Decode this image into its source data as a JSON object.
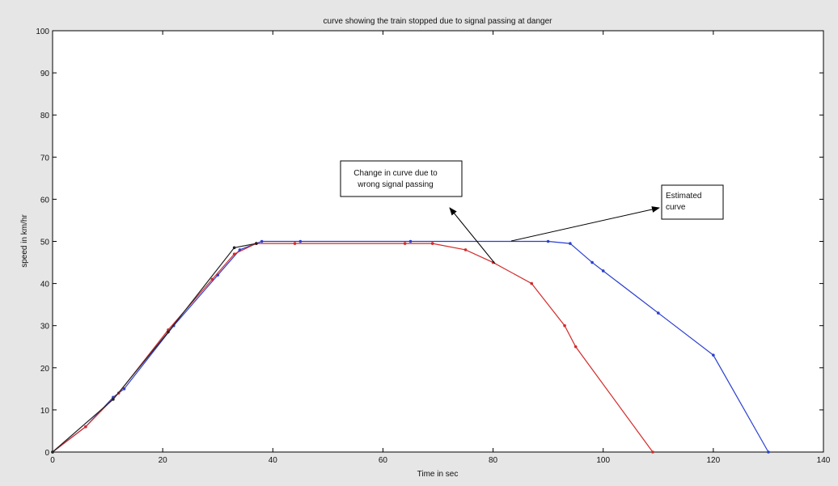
{
  "chart_data": {
    "type": "line",
    "title": "curve showing the train stopped due to signal passing at danger",
    "xlabel": "Time in sec",
    "ylabel": "speed in km/hr",
    "xlim": [
      0,
      140
    ],
    "ylim": [
      0,
      100
    ],
    "xticks": [
      0,
      20,
      40,
      60,
      80,
      100,
      120,
      140
    ],
    "yticks": [
      0,
      10,
      20,
      30,
      40,
      50,
      60,
      70,
      80,
      90,
      100
    ],
    "grid": false,
    "series": [
      {
        "color": "#2a3fd0",
        "x": [
          0,
          6,
          11,
          13,
          22,
          30,
          34,
          38,
          45,
          65,
          90,
          94,
          98,
          100,
          110,
          120,
          130
        ],
        "y": [
          0,
          6,
          13,
          15,
          30,
          42,
          48,
          50,
          50,
          50,
          50,
          49.5,
          45,
          43,
          33,
          23,
          0
        ]
      },
      {
        "color": "#d42a2a",
        "x": [
          0,
          6,
          12,
          21,
          29,
          33,
          37,
          44,
          64,
          69,
          75,
          80,
          87,
          93,
          95,
          109
        ],
        "y": [
          0,
          6,
          14,
          29,
          41,
          47,
          49.5,
          49.5,
          49.5,
          49.5,
          48,
          45,
          40,
          30,
          25,
          0
        ]
      },
      {
        "color": "#222222",
        "x": [
          0,
          11,
          21,
          33,
          37
        ],
        "y": [
          0,
          12.5,
          28.5,
          48.5,
          49.5
        ]
      }
    ],
    "annotations": [
      {
        "text_lines": [
          "Change in curve due to",
          "wrong signal passing"
        ]
      },
      {
        "text_lines": [
          "Estimated",
          "curve"
        ]
      }
    ]
  }
}
